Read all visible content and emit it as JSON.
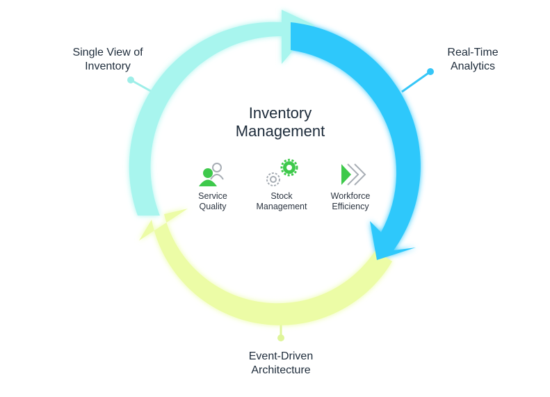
{
  "center": {
    "title_line1": "Inventory",
    "title_line2": "Management"
  },
  "segments": [
    {
      "label_line1": "Single View of",
      "label_line2": "Inventory",
      "color": "#a8f5ee"
    },
    {
      "label_line1": "Real-Time",
      "label_line2": "Analytics",
      "color": "#2ec8fb"
    },
    {
      "label_line1": "Event-Driven",
      "label_line2": "Architecture",
      "color": "#ecfca6"
    }
  ],
  "features": [
    {
      "icon": "person-group-icon",
      "label_line1": "Service",
      "label_line2": "Quality"
    },
    {
      "icon": "gears-icon",
      "label_line1": "Stock",
      "label_line2": "Management"
    },
    {
      "icon": "forward-arrows-icon",
      "label_line1": "Workforce",
      "label_line2": "Efficiency"
    }
  ],
  "colors": {
    "accent_green": "#3ec94b",
    "icon_gray": "#a7adb4",
    "connector_teal": "#9eeee8",
    "connector_blue": "#36c6f7",
    "connector_yellow": "#dff59a"
  }
}
